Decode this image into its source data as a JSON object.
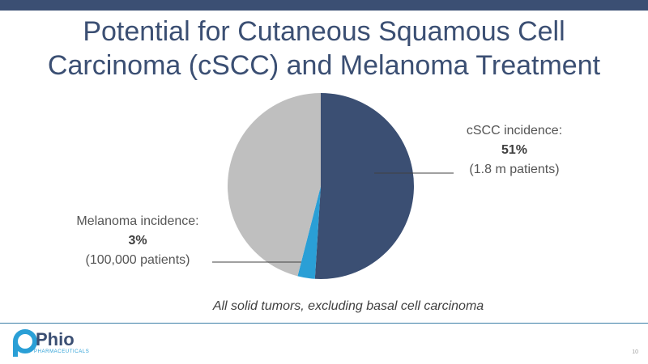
{
  "title": {
    "line1": "Potential for Cutaneous Squamous Cell",
    "line2": "Carcinoma (cSCC) and Melanoma Treatment"
  },
  "chart_data": {
    "type": "pie",
    "slices": [
      {
        "label": "cSCC incidence:",
        "value": 51,
        "display": "51%",
        "detail": "(1.8 m patients)",
        "color": "#3b4f73"
      },
      {
        "label": "Melanoma incidence:",
        "value": 3,
        "display": "3%",
        "detail": "(100,000 patients)",
        "color": "#2a9fd6"
      },
      {
        "label": "",
        "value": 46,
        "display": "",
        "detail": "",
        "color": "#bfbfbf"
      }
    ],
    "caption": "All solid tumors, excluding basal cell carcinoma"
  },
  "logo": {
    "name": "Phio",
    "subtitle": "PHARMACEUTICALS"
  },
  "page_number": "10",
  "colors": {
    "accent": "#3b4f73",
    "highlight": "#2a9fd6",
    "rule": "#3b7fa6"
  }
}
